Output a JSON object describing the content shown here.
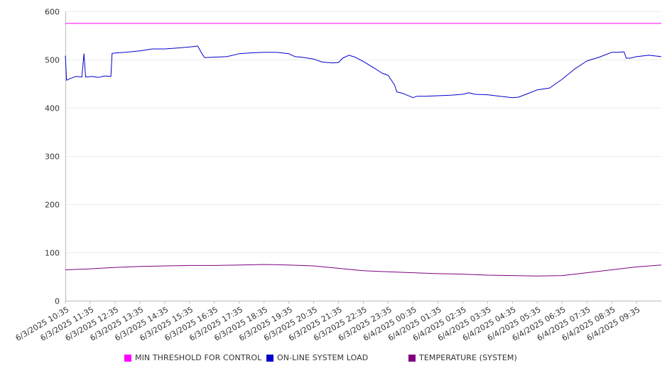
{
  "chart_data": {
    "type": "line",
    "ylim": [
      0,
      600
    ],
    "y_ticks": [
      0,
      100,
      200,
      300,
      400,
      500,
      600
    ],
    "x_tick_labels": [
      "6/3/2025 10:35",
      "6/3/2025 11:35",
      "6/3/2025 12:35",
      "6/3/2025 13:35",
      "6/3/2025 14:35",
      "6/3/2025 15:35",
      "6/3/2025 16:35",
      "6/3/2025 17:35",
      "6/3/2025 18:35",
      "6/3/2025 19:35",
      "6/3/2025 20:35",
      "6/3/2025 21:35",
      "6/3/2025 22:35",
      "6/3/2025 23:35",
      "6/4/2025 00:35",
      "6/4/2025 01:35",
      "6/4/2025 02:35",
      "6/4/2025 03:35",
      "6/4/2025 04:35",
      "6/4/2025 05:35",
      "6/4/2025 06:35",
      "6/4/2025 07:35",
      "6/4/2025 08:35",
      "6/4/2025 09:35"
    ],
    "x_range": [
      "6/3/2025 10:35",
      "6/4/2025 10:35"
    ],
    "grid": true,
    "legend_position": "bottom",
    "series": [
      {
        "name": "MIN THRESHOLD FOR CONTROL",
        "color": "#ff00ff",
        "points": [
          [
            "6/3/2025 10:35",
            575
          ],
          [
            "6/4/2025 10:35",
            575
          ]
        ]
      },
      {
        "name": "ON-LINE SYSTEM LOAD",
        "color": "#0000cc",
        "points": [
          [
            "6/3/2025 10:35",
            508
          ],
          [
            "6/3/2025 10:38",
            457
          ],
          [
            "6/3/2025 10:45",
            460
          ],
          [
            "6/3/2025 11:00",
            465
          ],
          [
            "6/3/2025 11:15",
            464
          ],
          [
            "6/3/2025 11:20",
            512
          ],
          [
            "6/3/2025 11:24",
            464
          ],
          [
            "6/3/2025 11:40",
            465
          ],
          [
            "6/3/2025 11:55",
            463
          ],
          [
            "6/3/2025 12:10",
            466
          ],
          [
            "6/3/2025 12:25",
            465
          ],
          [
            "6/3/2025 12:28",
            513
          ],
          [
            "6/3/2025 12:40",
            514
          ],
          [
            "6/3/2025 13:00",
            515
          ],
          [
            "6/3/2025 13:35",
            518
          ],
          [
            "6/3/2025 14:05",
            522
          ],
          [
            "6/3/2025 14:35",
            522
          ],
          [
            "6/3/2025 15:05",
            524
          ],
          [
            "6/3/2025 15:35",
            526
          ],
          [
            "6/3/2025 15:55",
            528
          ],
          [
            "6/3/2025 16:05",
            512
          ],
          [
            "6/3/2025 16:12",
            504
          ],
          [
            "6/3/2025 16:35",
            505
          ],
          [
            "6/3/2025 17:05",
            506
          ],
          [
            "6/3/2025 17:35",
            512
          ],
          [
            "6/3/2025 18:05",
            514
          ],
          [
            "6/3/2025 18:35",
            515
          ],
          [
            "6/3/2025 19:05",
            515
          ],
          [
            "6/3/2025 19:35",
            512
          ],
          [
            "6/3/2025 19:50",
            506
          ],
          [
            "6/3/2025 20:05",
            505
          ],
          [
            "6/3/2025 20:35",
            501
          ],
          [
            "6/3/2025 20:55",
            495
          ],
          [
            "6/3/2025 21:20",
            493
          ],
          [
            "6/3/2025 21:35",
            494
          ],
          [
            "6/3/2025 21:45",
            503
          ],
          [
            "6/3/2025 22:00",
            509
          ],
          [
            "6/3/2025 22:15",
            505
          ],
          [
            "6/3/2025 22:35",
            496
          ],
          [
            "6/3/2025 23:00",
            483
          ],
          [
            "6/3/2025 23:20",
            472
          ],
          [
            "6/3/2025 23:35",
            467
          ],
          [
            "6/3/2025 23:50",
            448
          ],
          [
            "6/3/2025 23:56",
            433
          ],
          [
            "6/4/2025 00:10",
            430
          ],
          [
            "6/4/2025 00:35",
            421
          ],
          [
            "6/4/2025 00:45",
            424
          ],
          [
            "6/4/2025 01:05",
            424
          ],
          [
            "6/4/2025 01:35",
            425
          ],
          [
            "6/4/2025 02:05",
            426
          ],
          [
            "6/4/2025 02:35",
            428
          ],
          [
            "6/4/2025 02:50",
            431
          ],
          [
            "6/4/2025 03:05",
            428
          ],
          [
            "6/4/2025 03:35",
            427
          ],
          [
            "6/4/2025 04:05",
            424
          ],
          [
            "6/4/2025 04:35",
            421
          ],
          [
            "6/4/2025 04:50",
            422
          ],
          [
            "6/4/2025 05:05",
            427
          ],
          [
            "6/4/2025 05:35",
            437
          ],
          [
            "6/4/2025 06:05",
            441
          ],
          [
            "6/4/2025 06:35",
            459
          ],
          [
            "6/4/2025 07:05",
            480
          ],
          [
            "6/4/2025 07:35",
            497
          ],
          [
            "6/4/2025 08:05",
            505
          ],
          [
            "6/4/2025 08:35",
            515
          ],
          [
            "6/4/2025 08:50",
            515
          ],
          [
            "6/4/2025 09:05",
            516
          ],
          [
            "6/4/2025 09:10",
            503
          ],
          [
            "6/4/2025 09:20",
            503
          ],
          [
            "6/4/2025 09:35",
            506
          ],
          [
            "6/4/2025 10:05",
            509
          ],
          [
            "6/4/2025 10:35",
            506
          ]
        ]
      },
      {
        "name": "TEMPERATURE (SYSTEM)",
        "color": "#800080",
        "points": [
          [
            "6/3/2025 10:35",
            64
          ],
          [
            "6/3/2025 11:35",
            66
          ],
          [
            "6/3/2025 12:35",
            69
          ],
          [
            "6/3/2025 13:35",
            71
          ],
          [
            "6/3/2025 14:35",
            72
          ],
          [
            "6/3/2025 15:35",
            73
          ],
          [
            "6/3/2025 16:35",
            73
          ],
          [
            "6/3/2025 17:35",
            74
          ],
          [
            "6/3/2025 18:35",
            75
          ],
          [
            "6/3/2025 19:35",
            74
          ],
          [
            "6/3/2025 20:35",
            72
          ],
          [
            "6/3/2025 21:35",
            67
          ],
          [
            "6/3/2025 22:35",
            62
          ],
          [
            "6/3/2025 23:35",
            60
          ],
          [
            "6/4/2025 00:35",
            58
          ],
          [
            "6/4/2025 01:35",
            56
          ],
          [
            "6/4/2025 02:35",
            55
          ],
          [
            "6/4/2025 03:35",
            53
          ],
          [
            "6/4/2025 04:35",
            52
          ],
          [
            "6/4/2025 05:35",
            51
          ],
          [
            "6/4/2025 06:35",
            52
          ],
          [
            "6/4/2025 07:35",
            58
          ],
          [
            "6/4/2025 08:35",
            64
          ],
          [
            "6/4/2025 09:35",
            70
          ],
          [
            "6/4/2025 10:35",
            74
          ]
        ]
      }
    ]
  }
}
